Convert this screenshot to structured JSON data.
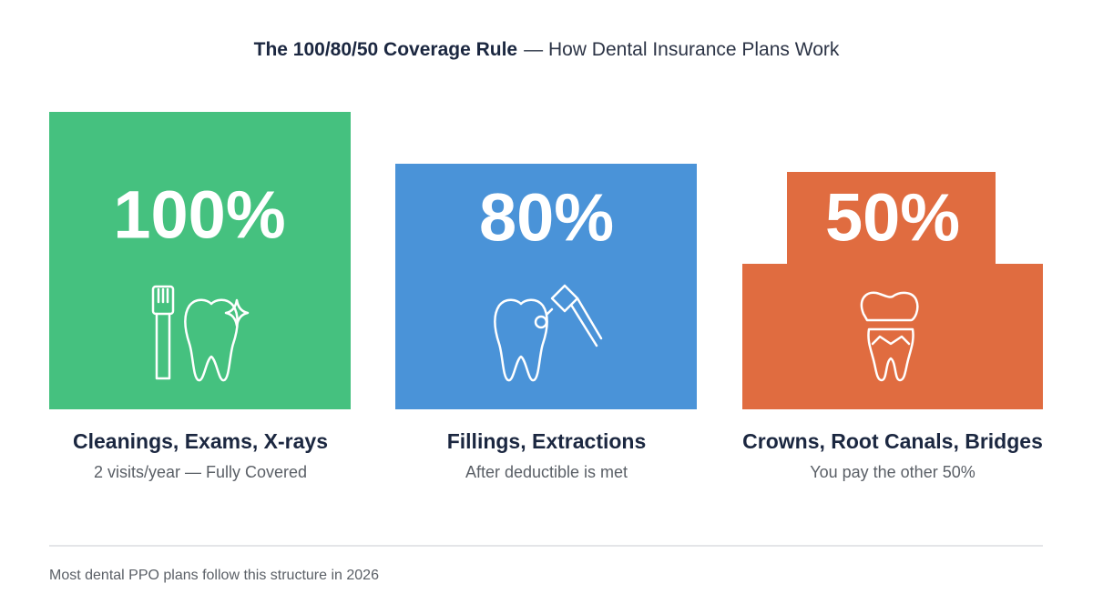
{
  "header": {
    "title_bold": "The 100/80/50 Coverage Rule",
    "title_rest": "— How Dental Insurance Plans Work"
  },
  "cards": [
    {
      "percent": "100%",
      "heading": "Cleanings, Exams, X-rays",
      "detail": "2 visits/year — Fully Covered"
    },
    {
      "percent": "80%",
      "heading": "Fillings, Extractions",
      "detail": "After deductible is met"
    },
    {
      "percent": "50%",
      "heading": "Crowns, Root Canals, Bridges",
      "detail": "You pay the other 50%"
    }
  ],
  "footer": {
    "note": "Most dental PPO plans follow this structure in 2026"
  }
}
